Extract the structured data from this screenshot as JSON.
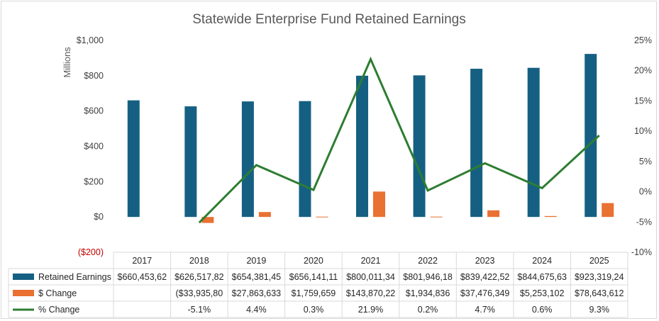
{
  "chart_data": {
    "type": "bar",
    "title": "Statewide Enterprise Fund Retained Earnings",
    "ylabel": "Millions",
    "ylim": [
      -200,
      1000
    ],
    "y2lim": [
      -10,
      25
    ],
    "y_ticks": [
      "$1,000",
      "$800",
      "$600",
      "$400",
      "$200",
      "$0",
      "($200)"
    ],
    "y2_ticks": [
      "25%",
      "20%",
      "15%",
      "10%",
      "5%",
      "0%",
      "-5%",
      "-10%"
    ],
    "categories": [
      "2017",
      "2018",
      "2019",
      "2020",
      "2021",
      "2022",
      "2023",
      "2024",
      "2025"
    ],
    "series": [
      {
        "name": "Retained Earnings",
        "type": "bar",
        "axis": "left",
        "color": "#156082",
        "values": [
          660.45,
          626.52,
          654.38,
          656.14,
          800.01,
          801.95,
          839.42,
          844.68,
          923.32
        ],
        "labels": [
          "$660,453,62",
          "$626,517,82",
          "$654,381,45",
          "$656,141,11",
          "$800,011,34",
          "$801,946,18",
          "$839,422,52",
          "$844,675,63",
          "$923,319,24"
        ]
      },
      {
        "name": "$ Change",
        "type": "bar",
        "axis": "left",
        "color": "#e97132",
        "values": [
          null,
          -33.94,
          27.86,
          1.76,
          143.87,
          1.93,
          37.48,
          5.25,
          78.64
        ],
        "labels": [
          "",
          "($33,935,80",
          "$27,863,633",
          "$1,759,659",
          "$143,870,22",
          "$1,934,836",
          "$37,476,349",
          "$5,253,102",
          "$78,643,612"
        ]
      },
      {
        "name": "% Change",
        "type": "line",
        "axis": "right",
        "color": "#2e7d32",
        "values": [
          null,
          -5.1,
          4.4,
          0.3,
          21.9,
          0.2,
          4.7,
          0.6,
          9.3
        ],
        "labels": [
          "",
          "-5.1%",
          "4.4%",
          "0.3%",
          "21.9%",
          "0.2%",
          "4.7%",
          "0.6%",
          "9.3%"
        ]
      }
    ],
    "grid": false,
    "legend": "data-table"
  }
}
